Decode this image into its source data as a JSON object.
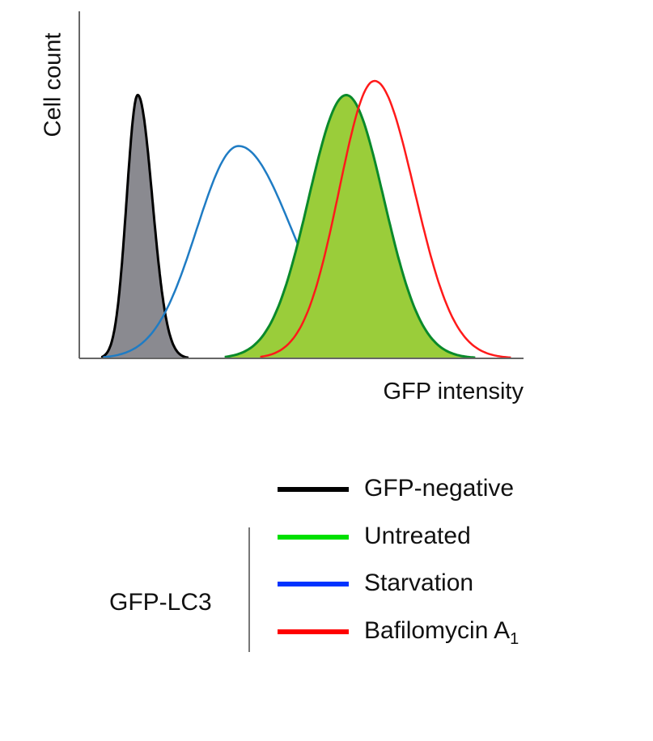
{
  "chart_data": {
    "type": "area",
    "xlabel": "GFP intensity",
    "ylabel": "Cell count",
    "xlim": [
      0,
      100
    ],
    "ylim": [
      0,
      1
    ],
    "grid": false,
    "ticks": false,
    "legend_placement": "bottom-right",
    "legend_group_label": "GFP-LC3",
    "series": [
      {
        "name": "GFP-negative",
        "color": "#000000",
        "fill": "#8a8a90",
        "peak": 13.2,
        "height": 0.93,
        "spread_left": 2.5,
        "spread_right": 3.3
      },
      {
        "name": "Starvation",
        "color": "#1f7cc4",
        "fill": null,
        "peak": 36,
        "height": 0.75,
        "spread_left": 9.5,
        "spread_right": 12
      },
      {
        "name": "Untreated",
        "color": "#0a8a2a",
        "fill": "#9acd3a",
        "peak": 60.3,
        "height": 0.93,
        "spread_left": 8.5,
        "spread_right": 8.5
      },
      {
        "name": "Bafilomycin A1",
        "color": "#ff1a1a",
        "fill": null,
        "peak": 66.7,
        "height": 0.98,
        "spread_left": 8,
        "spread_right": 9
      }
    ],
    "legend": [
      {
        "label": "GFP-negative",
        "color": "#000000"
      },
      {
        "label": "Untreated",
        "color": "#00e000"
      },
      {
        "label": "Starvation",
        "color": "#0033ff"
      },
      {
        "label": "Bafilomycin A",
        "subscript": "1",
        "color": "#ff0000"
      }
    ]
  }
}
